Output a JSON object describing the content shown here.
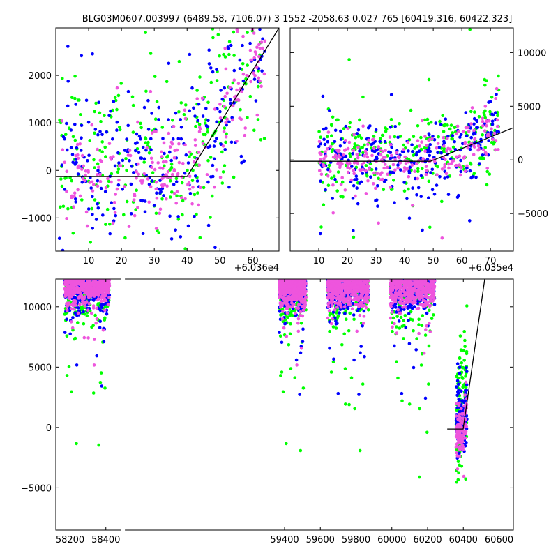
{
  "title": "BLG03M0607.003997 (6489.58, 7106.07)  3 1552 -2058.63 0.027 765 [60419.316, 60422.323]",
  "colors": {
    "green": "#00ff00",
    "blue": "#0000ff",
    "pink": "#ee55dd",
    "model": "#000000"
  },
  "chart_data": [
    {
      "type": "scatter",
      "xlim": [
        0,
        68
      ],
      "ylim": [
        -1700,
        3000
      ],
      "x_offset_label": "+6.036e4",
      "xticks": [
        10,
        20,
        30,
        40,
        50,
        60
      ],
      "yticks": [
        -1000,
        0,
        1000,
        2000
      ],
      "ytick_labels": [
        "−1000",
        "0",
        "1000",
        "2000"
      ],
      "model_line": [
        [
          0,
          -130
        ],
        [
          40,
          -130
        ],
        [
          68,
          3000
        ]
      ]
    },
    {
      "type": "scatter",
      "xlim": [
        0,
        78
      ],
      "ylim": [
        -8500,
        12300
      ],
      "x_offset_label": "+6.035e4",
      "xticks": [
        10,
        20,
        30,
        40,
        50,
        60,
        70
      ],
      "yticks": [
        -5000,
        0,
        5000,
        10000
      ],
      "ytick_labels": [
        "−5000",
        "0",
        "5000",
        "10000"
      ],
      "model_line": [
        [
          0,
          -130
        ],
        [
          49,
          -130
        ],
        [
          78,
          3000
        ]
      ]
    },
    {
      "type": "scatter",
      "xlim": [
        58120,
        60680
      ],
      "ylim": [
        -8500,
        12300
      ],
      "xticks": [
        58200,
        58400,
        59400,
        59600,
        59800,
        60000,
        60200,
        60400,
        60600
      ],
      "yticks": [
        -5000,
        0,
        5000,
        10000
      ],
      "ytick_labels": [
        "−5000",
        "0",
        "5000",
        "10000"
      ],
      "seasons": [
        [
          58170,
          58420
        ],
        [
          59370,
          59520
        ],
        [
          59640,
          59870
        ],
        [
          59990,
          60240
        ],
        [
          60360,
          60420
        ]
      ],
      "model_line": [
        [
          60310,
          -130
        ],
        [
          60399,
          -130
        ],
        [
          60520,
          12300
        ]
      ]
    }
  ]
}
